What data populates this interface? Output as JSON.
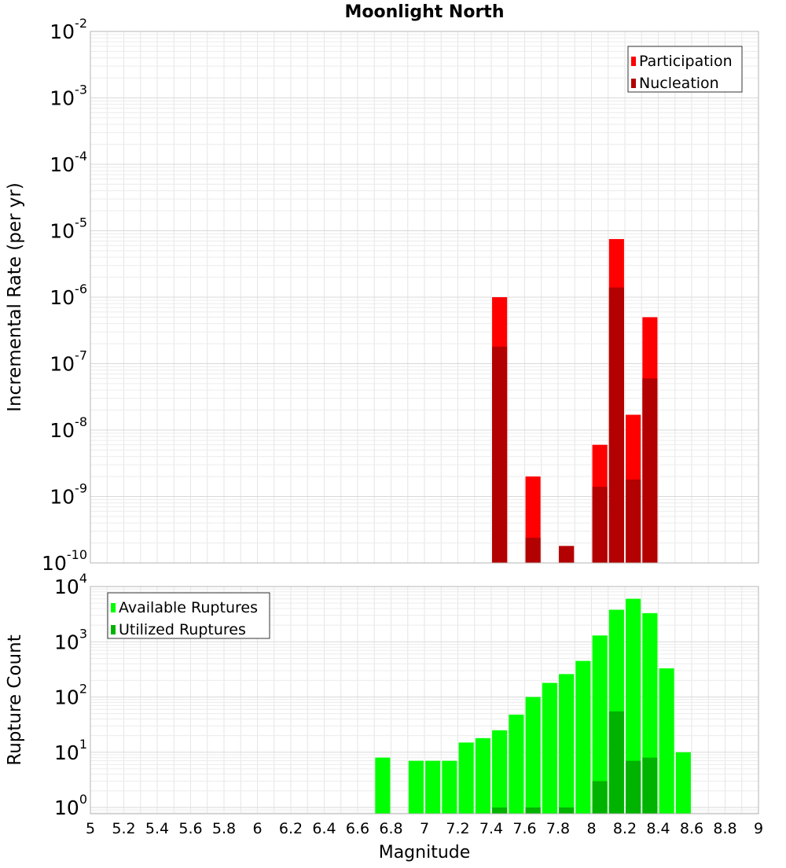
{
  "chart_data": [
    {
      "type": "bar",
      "title": "Moonlight North",
      "ylabel": "Incremental Rate (per yr)",
      "xlabel": "",
      "yscale": "log",
      "xlim": [
        5,
        9
      ],
      "ylim": [
        1e-10,
        0.01
      ],
      "ytick_exponents": [
        "-2",
        "-3",
        "-4",
        "-5",
        "-6",
        "-7",
        "-8",
        "-9",
        "-10"
      ],
      "ytick_base": "10",
      "grid": true,
      "legend_position": "top-right",
      "bar_width": 0.09,
      "series": [
        {
          "name": "Participation",
          "color": "#ff0000",
          "x": [
            7.45,
            7.65,
            7.85,
            8.05,
            8.15,
            8.25,
            8.35
          ],
          "values": [
            1e-06,
            2e-09,
            1.8e-10,
            6e-09,
            7.5e-06,
            1.7e-08,
            5e-07
          ]
        },
        {
          "name": "Nucleation",
          "color": "#b30000",
          "x": [
            7.45,
            7.65,
            7.85,
            8.05,
            8.15,
            8.25,
            8.35
          ],
          "values": [
            1.8e-07,
            2.4e-10,
            1.8e-10,
            1.4e-09,
            1.4e-06,
            1.8e-09,
            6e-08
          ]
        }
      ]
    },
    {
      "type": "bar",
      "title": "",
      "ylabel": "Rupture Count",
      "xlabel": "Magnitude",
      "yscale": "log",
      "xlim": [
        5,
        9
      ],
      "ylim": [
        0.77,
        10000
      ],
      "ytick_exponents": [
        "4",
        "3",
        "2",
        "1",
        "0"
      ],
      "ytick_base": "10",
      "xticks": [
        "5",
        "5.2",
        "5.4",
        "5.6",
        "5.8",
        "6",
        "6.2",
        "6.4",
        "6.6",
        "6.8",
        "7",
        "7.2",
        "7.4",
        "7.6",
        "7.8",
        "8",
        "8.2",
        "8.4",
        "8.6",
        "8.8",
        "9"
      ],
      "grid": true,
      "legend_position": "top-left",
      "bar_width": 0.09,
      "series": [
        {
          "name": "Available Ruptures",
          "color": "#00ff00",
          "x": [
            6.75,
            6.95,
            7.05,
            7.15,
            7.25,
            7.35,
            7.45,
            7.55,
            7.65,
            7.75,
            7.85,
            7.95,
            8.05,
            8.15,
            8.25,
            8.35,
            8.45,
            8.55
          ],
          "values": [
            8,
            7,
            7,
            7,
            15,
            18,
            25,
            48,
            100,
            180,
            260,
            450,
            1300,
            3800,
            6000,
            3300,
            330,
            10
          ]
        },
        {
          "name": "Utilized Ruptures",
          "color": "#00b300",
          "x": [
            7.45,
            7.65,
            7.85,
            8.05,
            8.15,
            8.25,
            8.35
          ],
          "values": [
            1,
            1,
            1,
            3,
            55,
            7,
            8
          ]
        }
      ]
    }
  ]
}
